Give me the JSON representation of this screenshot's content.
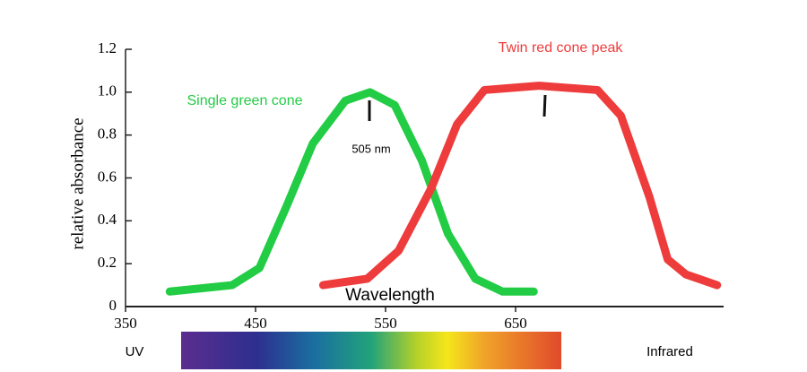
{
  "chart_data": {
    "type": "line",
    "y_label": "relative absorbance",
    "x_label": "Wavelength",
    "annotations": [
      "505 nm",
      "UV",
      "Infrared"
    ],
    "xlim": [
      350,
      810
    ],
    "xticks": [
      350,
      450,
      550,
      650
    ],
    "ylim": [
      0,
      1.2
    ],
    "yticks": [
      0,
      0.2,
      0.4,
      0.6,
      0.8,
      {
        "value": 1,
        "label": "1.0"
      },
      1.2
    ],
    "grid": false,
    "series": [
      {
        "name": "Single green cone",
        "color": "#22cc44",
        "x": [
          384,
          432,
          453,
          474,
          494,
          519,
          538,
          557,
          578,
          598,
          619,
          640,
          664
        ],
        "values": [
          0.07,
          0.1,
          0.18,
          0.47,
          0.76,
          0.96,
          1.0,
          0.94,
          0.68,
          0.34,
          0.13,
          0.07,
          0.07
        ]
      },
      {
        "name": "Twin red cone peak",
        "color": "#ee3b3b",
        "x": [
          502,
          536,
          560,
          585,
          605,
          626,
          668,
          713,
          731,
          753,
          767,
          781,
          805
        ],
        "values": [
          0.1,
          0.13,
          0.26,
          0.55,
          0.85,
          1.01,
          1.03,
          1.01,
          0.89,
          0.51,
          0.22,
          0.15,
          0.1
        ]
      }
    ]
  }
}
